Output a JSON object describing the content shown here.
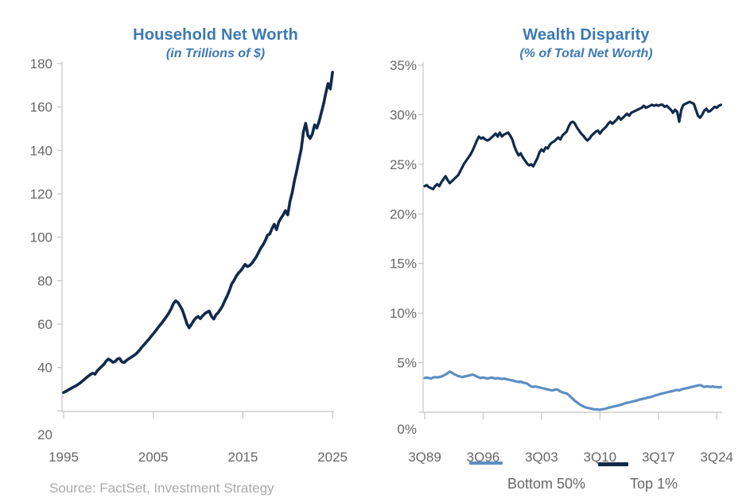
{
  "source_note": "Source: FactSet, Investment Strategy",
  "colors": {
    "navy": "#102a4c",
    "light_blue": "#5c8ec3",
    "title_blue": "#3b79b5",
    "label_gray": "#666666",
    "source_gray": "#a9a9a9",
    "axis_gray": "#c4c4c4"
  },
  "chart_data": [
    {
      "type": "line",
      "title": "Household Net Worth",
      "subtitle": "(in Trillions of $)",
      "x_start": 1995,
      "x_step": 0.25,
      "xlim": [
        1995,
        2025.3
      ],
      "ylim": [
        20,
        180
      ],
      "grid": false,
      "x_ticks": [
        1995,
        2005,
        2015,
        2025
      ],
      "x_tick_labels": [
        "1995",
        "2005",
        "2015",
        "2025"
      ],
      "y_ticks": [
        180,
        160,
        140,
        120,
        100,
        80,
        60,
        40,
        20
      ],
      "y_tick_suffix": "",
      "series": [
        {
          "name": "Household Net Worth",
          "color": "navy",
          "values": [
            28.5,
            29.0,
            29.6,
            30.2,
            30.8,
            31.3,
            31.9,
            32.6,
            33.4,
            34.3,
            35.2,
            36.0,
            36.8,
            37.4,
            36.9,
            38.5,
            39.5,
            40.5,
            41.5,
            43.0,
            43.9,
            43.3,
            42.4,
            42.8,
            43.9,
            44.2,
            42.6,
            42.3,
            43.2,
            44.0,
            44.6,
            45.3,
            46.0,
            47.0,
            48.2,
            49.5,
            50.6,
            51.8,
            53.0,
            54.3,
            55.5,
            56.8,
            58.2,
            59.5,
            60.8,
            62.2,
            63.6,
            65.2,
            67.0,
            69.5,
            70.7,
            70.0,
            68.3,
            66.5,
            63.5,
            60.2,
            58.3,
            59.8,
            61.5,
            62.8,
            63.5,
            62.5,
            63.8,
            64.8,
            65.5,
            66.0,
            63.5,
            62.3,
            64.3,
            65.3,
            66.8,
            68.5,
            71.0,
            73.0,
            75.5,
            78.5,
            80.0,
            82.0,
            83.5,
            84.5,
            86.0,
            87.5,
            86.5,
            87.0,
            88.0,
            89.5,
            91.0,
            93.0,
            95.0,
            96.5,
            98.5,
            101.0,
            101.5,
            104.0,
            106.0,
            103.5,
            107.0,
            108.8,
            110.3,
            112.3,
            110.3,
            116.5,
            120.5,
            126.0,
            130.5,
            135.5,
            140.5,
            148.5,
            152.5,
            147.0,
            145.5,
            147.5,
            151.8,
            150.3,
            153.3,
            157.3,
            161.3,
            166.3,
            170.8,
            168.3,
            176.0
          ]
        }
      ]
    },
    {
      "type": "line",
      "title": "Wealth Disparity",
      "subtitle": "(% of Total Net Worth)",
      "x_start": 1989.75,
      "x_step": 0.25,
      "xlim": [
        1989.75,
        2025.25
      ],
      "ylim": [
        0,
        35
      ],
      "grid": false,
      "legend_position": "bottom",
      "x_ticks": [
        1989.75,
        1996.75,
        2003.75,
        2010.75,
        2017.75,
        2024.75
      ],
      "x_tick_labels": [
        "3Q89",
        "3Q96",
        "3Q03",
        "3Q10",
        "3Q17",
        "3Q24"
      ],
      "y_ticks": [
        35,
        30,
        25,
        20,
        15,
        10,
        5,
        0
      ],
      "y_tick_suffix": "%",
      "series": [
        {
          "name": "Bottom 50%",
          "color": "light_blue",
          "values": [
            3.45,
            3.5,
            3.45,
            3.4,
            3.5,
            3.55,
            3.5,
            3.55,
            3.6,
            3.7,
            3.8,
            3.95,
            4.1,
            4.0,
            3.85,
            3.75,
            3.65,
            3.6,
            3.55,
            3.6,
            3.65,
            3.7,
            3.75,
            3.8,
            3.7,
            3.6,
            3.5,
            3.45,
            3.5,
            3.45,
            3.4,
            3.45,
            3.5,
            3.45,
            3.4,
            3.45,
            3.4,
            3.35,
            3.4,
            3.35,
            3.3,
            3.25,
            3.2,
            3.15,
            3.1,
            3.05,
            3.1,
            3.0,
            2.95,
            2.9,
            2.75,
            2.6,
            2.55,
            2.6,
            2.55,
            2.5,
            2.45,
            2.4,
            2.35,
            2.3,
            2.25,
            2.2,
            2.25,
            2.3,
            2.25,
            2.1,
            2.0,
            1.95,
            1.9,
            1.75,
            1.55,
            1.35,
            1.15,
            1.0,
            0.85,
            0.7,
            0.6,
            0.5,
            0.45,
            0.4,
            0.35,
            0.3,
            0.3,
            0.28,
            0.25,
            0.3,
            0.32,
            0.38,
            0.45,
            0.5,
            0.55,
            0.6,
            0.65,
            0.7,
            0.75,
            0.82,
            0.9,
            0.95,
            1.0,
            1.05,
            1.1,
            1.15,
            1.2,
            1.28,
            1.32,
            1.38,
            1.42,
            1.48,
            1.52,
            1.58,
            1.65,
            1.72,
            1.78,
            1.85,
            1.9,
            1.95,
            2.0,
            2.05,
            2.1,
            2.15,
            2.2,
            2.25,
            2.2,
            2.3,
            2.35,
            2.4,
            2.45,
            2.5,
            2.55,
            2.6,
            2.65,
            2.7,
            2.75,
            2.65,
            2.55,
            2.6,
            2.6,
            2.55,
            2.6,
            2.55,
            2.55,
            2.5,
            2.55
          ]
        },
        {
          "name": "Top 1%",
          "color": "navy",
          "values": [
            22.8,
            22.9,
            22.7,
            22.6,
            22.5,
            22.8,
            23.0,
            22.8,
            23.2,
            23.5,
            23.8,
            23.4,
            23.1,
            23.3,
            23.5,
            23.7,
            23.9,
            24.3,
            24.7,
            25.1,
            25.4,
            25.7,
            26.0,
            26.4,
            26.9,
            27.4,
            27.8,
            27.6,
            27.7,
            27.5,
            27.4,
            27.5,
            27.7,
            27.9,
            28.1,
            27.8,
            28.2,
            27.8,
            28.0,
            28.1,
            28.2,
            27.9,
            27.5,
            26.8,
            26.3,
            25.9,
            26.1,
            25.7,
            25.4,
            25.1,
            24.9,
            25.0,
            24.8,
            25.2,
            25.6,
            26.2,
            26.5,
            26.3,
            26.7,
            26.6,
            27.0,
            27.2,
            27.3,
            27.5,
            27.7,
            27.5,
            27.9,
            28.1,
            28.3,
            28.8,
            29.2,
            29.3,
            29.1,
            28.7,
            28.4,
            28.1,
            27.9,
            27.6,
            27.4,
            27.6,
            27.9,
            28.1,
            28.3,
            28.4,
            28.1,
            28.4,
            28.6,
            28.8,
            29.1,
            29.3,
            29.1,
            29.3,
            29.5,
            29.8,
            29.5,
            29.7,
            29.9,
            30.1,
            29.9,
            30.2,
            30.3,
            30.4,
            30.5,
            30.6,
            30.7,
            30.9,
            30.7,
            30.8,
            30.9,
            31.0,
            30.9,
            31.0,
            30.9,
            31.0,
            31.0,
            30.8,
            30.9,
            30.7,
            30.5,
            30.2,
            30.5,
            30.3,
            29.3,
            30.5,
            31.0,
            31.1,
            31.2,
            31.3,
            31.2,
            31.1,
            30.5,
            29.9,
            29.7,
            30.0,
            30.4,
            30.6,
            30.3,
            30.4,
            30.6,
            30.8,
            30.7,
            30.9,
            31.0
          ]
        }
      ]
    }
  ]
}
